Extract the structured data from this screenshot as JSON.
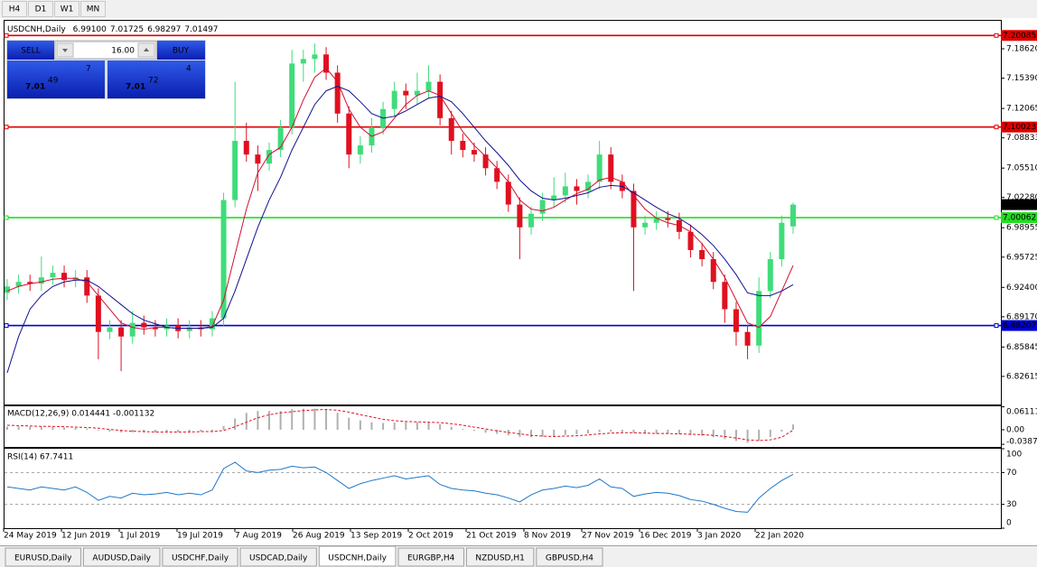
{
  "toolbar": [
    "H4",
    "D1",
    "W1",
    "MN"
  ],
  "trade_panel": {
    "sell": "SELL",
    "buy": "BUY",
    "volume": "16.00",
    "bid": {
      "big": "7.01",
      "pips": "49",
      "point": "7"
    },
    "ask": {
      "big": "7.01",
      "pips": "72",
      "point": "4"
    }
  },
  "chart_data": [
    {
      "type": "candlestick",
      "title": {
        "symbol": "USDCNH,Daily",
        "ohlc": [
          "6.99100",
          "7.01725",
          "6.98297",
          "7.01497"
        ]
      },
      "up_color": "#3fdc7a",
      "down_color": "#e01020",
      "open": [
        6.918,
        6.925,
        6.93,
        6.928,
        6.935,
        6.94,
        6.932,
        6.935,
        6.915,
        6.875,
        6.88,
        6.87,
        6.885,
        6.88,
        6.878,
        6.882,
        6.876,
        6.88,
        6.878,
        6.89,
        7.02,
        7.085,
        7.07,
        7.06,
        7.075,
        7.1,
        7.17,
        7.175,
        7.18,
        7.16,
        7.115,
        7.07,
        7.08,
        7.1,
        7.12,
        7.14,
        7.135,
        7.14,
        7.15,
        7.11,
        7.085,
        7.075,
        7.07,
        7.055,
        7.04,
        7.015,
        6.99,
        7.005,
        7.02,
        7.025,
        7.035,
        7.03,
        7.04,
        7.07,
        7.04,
        7.03,
        6.99,
        6.995,
        7.0,
        6.998,
        6.985,
        6.965,
        6.955,
        6.93,
        6.9,
        6.875,
        6.86,
        6.92,
        6.955,
        6.991
      ],
      "high": [
        6.933,
        6.938,
        6.938,
        6.958,
        6.948,
        6.948,
        6.943,
        6.943,
        6.923,
        6.888,
        6.888,
        6.898,
        6.893,
        6.888,
        6.89,
        6.89,
        6.888,
        6.888,
        6.898,
        7.028,
        7.15,
        7.105,
        7.08,
        7.083,
        7.108,
        7.185,
        7.185,
        7.192,
        7.188,
        7.168,
        7.123,
        7.09,
        7.11,
        7.128,
        7.15,
        7.148,
        7.16,
        7.168,
        7.158,
        7.118,
        7.093,
        7.083,
        7.078,
        7.063,
        7.048,
        7.023,
        7.013,
        7.028,
        7.045,
        7.05,
        7.043,
        7.048,
        7.085,
        7.078,
        7.048,
        7.038,
        7.003,
        7.008,
        7.008,
        7.006,
        6.993,
        6.973,
        6.963,
        6.938,
        6.908,
        6.883,
        6.935,
        6.963,
        7.003,
        7.01725
      ],
      "low": [
        6.91,
        6.917,
        6.92,
        6.92,
        6.927,
        6.924,
        6.924,
        6.907,
        6.845,
        6.867,
        6.832,
        6.862,
        6.872,
        6.87,
        6.87,
        6.868,
        6.868,
        6.87,
        6.87,
        6.882,
        7.012,
        7.062,
        7.03,
        7.052,
        7.067,
        7.092,
        7.15,
        7.16,
        7.152,
        7.105,
        7.055,
        7.06,
        7.072,
        7.092,
        7.112,
        7.12,
        7.125,
        7.132,
        7.102,
        7.07,
        7.067,
        7.062,
        7.047,
        7.032,
        7.007,
        6.955,
        6.982,
        6.997,
        7.012,
        7.017,
        7.015,
        7.022,
        7.032,
        7.032,
        7.022,
        6.92,
        6.982,
        6.987,
        6.99,
        6.977,
        6.957,
        6.947,
        6.922,
        6.885,
        6.86,
        6.845,
        6.852,
        6.912,
        6.947,
        6.98297
      ],
      "close": [
        6.925,
        6.93,
        6.928,
        6.935,
        6.94,
        6.932,
        6.935,
        6.915,
        6.875,
        6.88,
        6.87,
        6.885,
        6.88,
        6.878,
        6.882,
        6.876,
        6.88,
        6.878,
        6.89,
        7.02,
        7.085,
        7.07,
        7.06,
        7.075,
        7.1,
        7.17,
        7.175,
        7.18,
        7.16,
        7.115,
        7.07,
        7.08,
        7.1,
        7.12,
        7.14,
        7.135,
        7.14,
        7.15,
        7.11,
        7.085,
        7.075,
        7.07,
        7.055,
        7.04,
        7.015,
        6.99,
        7.005,
        7.02,
        7.025,
        7.035,
        7.03,
        7.04,
        7.07,
        7.04,
        7.03,
        6.99,
        6.995,
        7.0,
        6.998,
        6.985,
        6.965,
        6.955,
        6.93,
        6.9,
        6.875,
        6.86,
        6.92,
        6.955,
        6.995,
        7.01497
      ],
      "lines": [
        {
          "color": "#d01030",
          "values": [
            6.92,
            6.925,
            6.928,
            6.93,
            6.933,
            6.934,
            6.934,
            6.93,
            6.915,
            6.9,
            6.885,
            6.88,
            6.878,
            6.88,
            6.88,
            6.879,
            6.879,
            6.879,
            6.881,
            6.91,
            6.96,
            7.01,
            7.05,
            7.07,
            7.078,
            7.1,
            7.13,
            7.155,
            7.165,
            7.15,
            7.12,
            7.1,
            7.09,
            7.095,
            7.11,
            7.125,
            7.135,
            7.14,
            7.135,
            7.115,
            7.095,
            7.08,
            7.068,
            7.055,
            7.04,
            7.02,
            7.01,
            7.008,
            7.012,
            7.02,
            7.027,
            7.032,
            7.042,
            7.045,
            7.04,
            7.025,
            7.01,
            7.0,
            6.995,
            6.992,
            6.985,
            6.972,
            6.955,
            6.935,
            6.91,
            6.885,
            6.88,
            6.892,
            6.92,
            6.948
          ]
        },
        {
          "color": "#101090",
          "values": [
            6.83,
            6.87,
            6.9,
            6.915,
            6.925,
            6.93,
            6.932,
            6.932,
            6.925,
            6.915,
            6.905,
            6.895,
            6.888,
            6.884,
            6.88,
            6.879,
            6.879,
            6.879,
            6.88,
            6.89,
            6.92,
            6.955,
            6.99,
            7.02,
            7.045,
            7.075,
            7.1,
            7.125,
            7.14,
            7.145,
            7.14,
            7.128,
            7.115,
            7.11,
            7.112,
            7.118,
            7.125,
            7.132,
            7.134,
            7.128,
            7.115,
            7.1,
            7.085,
            7.072,
            7.058,
            7.042,
            7.03,
            7.022,
            7.02,
            7.022,
            7.025,
            7.028,
            7.034,
            7.036,
            7.035,
            7.028,
            7.02,
            7.012,
            7.005,
            7.0,
            6.992,
            6.982,
            6.97,
            6.955,
            6.938,
            6.918,
            6.915,
            6.915,
            6.92,
            6.927
          ]
        }
      ],
      "levels": [
        {
          "value": 7.20085,
          "color": "#e00000"
        },
        {
          "value": 7.10023,
          "color": "#e00000"
        },
        {
          "value": 7.00062,
          "color": "#22dd22"
        },
        {
          "value": 6.88207,
          "color": "#0000cc"
        }
      ],
      "current": 7.01497,
      "ylim": [
        6.7953,
        7.217
      ],
      "yticks": [
        {
          "value": 7.1862,
          "label": "7.18620"
        },
        {
          "value": 7.1539,
          "label": "7.15390"
        },
        7.12065,
        7.08833,
        {
          "value": 7.0551,
          "label": "7.05510"
        },
        {
          "value": 7.0228,
          "label": "7.02280"
        },
        6.98955,
        6.95725,
        {
          "value": 6.924,
          "label": "6.92400"
        },
        {
          "value": 6.8917,
          "label": "6.89170"
        },
        6.85845,
        6.82615
      ],
      "x_labels": [
        "24 May 2019",
        "12 Jun 2019",
        "1 Jul 2019",
        "19 Jul 2019",
        "7 Aug 2019",
        "26 Aug 2019",
        "13 Sep 2019",
        "2 Oct 2019",
        "21 Oct 2019",
        "8 Nov 2019",
        "27 Nov 2019",
        "16 Dec 2019",
        "3 Jan 2020",
        "22 Jan 2020"
      ]
    },
    {
      "type": "macd",
      "title": "MACD(12,26,9) 0.014441 -0.001132",
      "color": "#b0b0b0",
      "signal_color": "#e01020",
      "values": [
        0.008,
        0.009,
        0.008,
        0.008,
        0.007,
        0.006,
        0.005,
        0.003,
        -0.002,
        -0.005,
        -0.007,
        -0.007,
        -0.007,
        -0.007,
        -0.006,
        -0.006,
        -0.005,
        -0.005,
        -0.004,
        0.01,
        0.03,
        0.045,
        0.05,
        0.05,
        0.05,
        0.055,
        0.056,
        0.056,
        0.054,
        0.045,
        0.032,
        0.025,
        0.02,
        0.018,
        0.019,
        0.02,
        0.02,
        0.02,
        0.015,
        0.008,
        0.002,
        -0.003,
        -0.008,
        -0.011,
        -0.015,
        -0.019,
        -0.02,
        -0.019,
        -0.017,
        -0.014,
        -0.012,
        -0.01,
        -0.006,
        -0.005,
        -0.006,
        -0.009,
        -0.01,
        -0.011,
        -0.011,
        -0.012,
        -0.014,
        -0.016,
        -0.02,
        -0.025,
        -0.03,
        -0.035,
        -0.03,
        -0.02,
        -0.005,
        0.014
      ],
      "signal": [
        0.012,
        0.011,
        0.01,
        0.009,
        0.009,
        0.008,
        0.007,
        0.006,
        0.004,
        0.001,
        -0.002,
        -0.004,
        -0.005,
        -0.006,
        -0.006,
        -0.006,
        -0.006,
        -0.005,
        -0.005,
        -0.002,
        0.008,
        0.02,
        0.032,
        0.04,
        0.045,
        0.048,
        0.051,
        0.053,
        0.054,
        0.052,
        0.047,
        0.04,
        0.034,
        0.028,
        0.024,
        0.022,
        0.021,
        0.02,
        0.019,
        0.016,
        0.012,
        0.007,
        0.002,
        -0.003,
        -0.007,
        -0.011,
        -0.015,
        -0.017,
        -0.018,
        -0.017,
        -0.016,
        -0.014,
        -0.011,
        -0.009,
        -0.008,
        -0.008,
        -0.009,
        -0.01,
        -0.01,
        -0.011,
        -0.012,
        -0.013,
        -0.015,
        -0.018,
        -0.022,
        -0.027,
        -0.029,
        -0.027,
        -0.02,
        -0.001
      ],
      "ylim": [
        -0.0458,
        0.0625
      ],
      "yticks": [
        0.06111,
        {
          "value": 0,
          "label": "0.00"
        },
        -0.03877
      ]
    },
    {
      "type": "rsi",
      "title": "RSI(14) 67.7411",
      "color": "#1e78c8",
      "values": [
        52,
        50,
        48,
        52,
        50,
        48,
        52,
        45,
        35,
        40,
        38,
        44,
        42,
        43,
        45,
        42,
        44,
        42,
        48,
        75,
        83,
        72,
        70,
        73,
        74,
        78,
        76,
        77,
        70,
        60,
        50,
        56,
        60,
        63,
        66,
        62,
        64,
        66,
        55,
        50,
        48,
        47,
        44,
        42,
        38,
        33,
        42,
        48,
        50,
        53,
        51,
        54,
        62,
        52,
        50,
        40,
        43,
        45,
        44,
        41,
        36,
        34,
        30,
        25,
        21,
        20,
        38,
        50,
        60,
        67.7411
      ],
      "ylim": [
        0,
        100
      ],
      "yticks": [
        100,
        70,
        30,
        0
      ]
    }
  ],
  "tabs": [
    {
      "label": "EURUSD,Daily"
    },
    {
      "label": "AUDUSD,Daily"
    },
    {
      "label": "USDCHF,Daily"
    },
    {
      "label": "USDCAD,Daily"
    },
    {
      "label": "USDCNH,Daily",
      "active": true
    },
    {
      "label": "EURGBP,H4"
    },
    {
      "label": "NZDUSD,H1"
    },
    {
      "label": "GBPUSD,H4"
    }
  ]
}
